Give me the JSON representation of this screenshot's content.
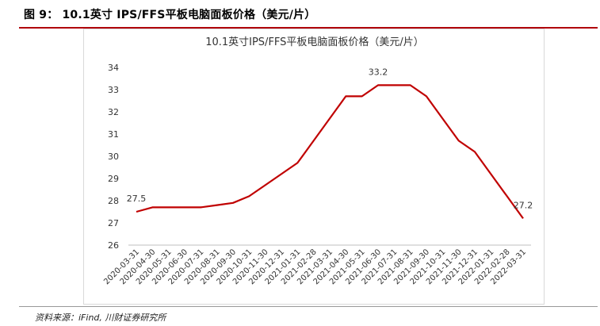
{
  "figure": {
    "title": "图 9： 10.1英寸 IPS/FFS平板电脑面板价格（美元/片）",
    "source": "资料来源：iFind, 川财证券研究所"
  },
  "chart_data": {
    "type": "line",
    "title": "10.1英寸IPS/FFS平板电脑面板价格（美元/片）",
    "xlabel": "",
    "ylabel": "",
    "ylim": [
      26,
      34
    ],
    "yticks": [
      26,
      27,
      28,
      29,
      30,
      31,
      32,
      33,
      34
    ],
    "grid": false,
    "legend": "none",
    "color": "#c00000",
    "categories": [
      "2020-03-31",
      "2020-04-30",
      "2020-05-31",
      "2020-06-30",
      "2020-07-31",
      "2020-08-31",
      "2020-09-30",
      "2020-10-31",
      "2020-11-30",
      "2020-12-31",
      "2021-01-31",
      "2021-02-28",
      "2021-03-31",
      "2021-04-30",
      "2021-05-31",
      "2021-06-30",
      "2021-07-31",
      "2021-08-31",
      "2021-09-30",
      "2021-10-31",
      "2021-11-30",
      "2021-12-31",
      "2022-01-31",
      "2022-02-28",
      "2022-03-31"
    ],
    "series": [
      {
        "values": [
          27.5,
          27.7,
          27.7,
          27.7,
          27.7,
          27.8,
          27.9,
          28.2,
          28.7,
          29.2,
          29.7,
          30.7,
          31.7,
          32.7,
          32.7,
          33.2,
          33.2,
          33.2,
          32.7,
          31.7,
          30.7,
          30.2,
          29.2,
          28.2,
          27.2
        ]
      }
    ],
    "data_labels": [
      {
        "index": 0,
        "text": "27.5"
      },
      {
        "index": 15,
        "text": "33.2"
      },
      {
        "index": 24,
        "text": "27.2"
      }
    ]
  }
}
